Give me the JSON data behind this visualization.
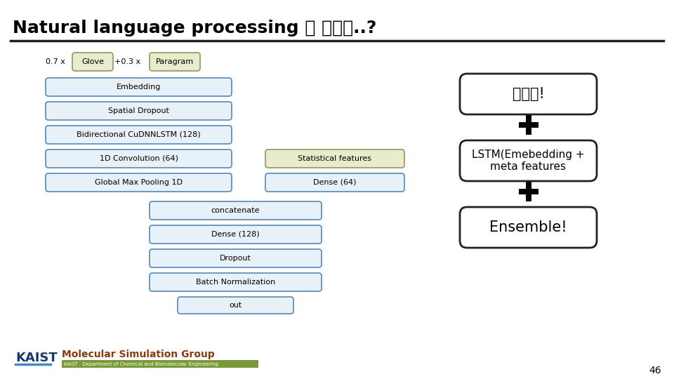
{
  "title": "Natural language processing 의 강자는..?",
  "title_fontsize": 18,
  "background_color": "#ffffff",
  "page_number": "46",
  "eq_text": "0.7 x",
  "glove_label": "Glove",
  "plus_text": "+0.3 x",
  "paragram_label": "Paragram",
  "left_layers": [
    "Embedding",
    "Spatial Dropout",
    "Bidirectional CuDNNLSTM (128)",
    "1D Convolution (64)",
    "Global Max Pooling 1D"
  ],
  "right_branch_layers": [
    "Statistical features",
    "Dense (64)"
  ],
  "bottom_layers": [
    "concatenate",
    "Dense (128)",
    "Dropout",
    "Batch Normalization",
    "out"
  ],
  "box1_text": "전저리!",
  "box2_text": "LSTM(Emebedding +\nmeta features",
  "box3_text": "Ensemble!",
  "left_layer_color": "#e8f0f8",
  "left_layer_edge": "#5588bb",
  "glove_color": "#e8eccc",
  "glove_edge": "#8a9a5a",
  "stat_color": "#e8eccc",
  "stat_edge": "#8a9a5a",
  "dense64_color": "#e8f0f8",
  "dense64_edge": "#5588bb",
  "bottom_color": "#e8f0f8",
  "bottom_edge": "#5588bb",
  "right_box_edge": "#222222",
  "kaist_text": "KAIST",
  "kaist_color": "#1a3a6b",
  "msg_title": "Molecular Simulation Group",
  "msg_color": "#8b3a10",
  "sub_bar_color": "#7a9a3a",
  "sub_text": "KAIST   Department of Chemical and Biomolecular Engineering"
}
